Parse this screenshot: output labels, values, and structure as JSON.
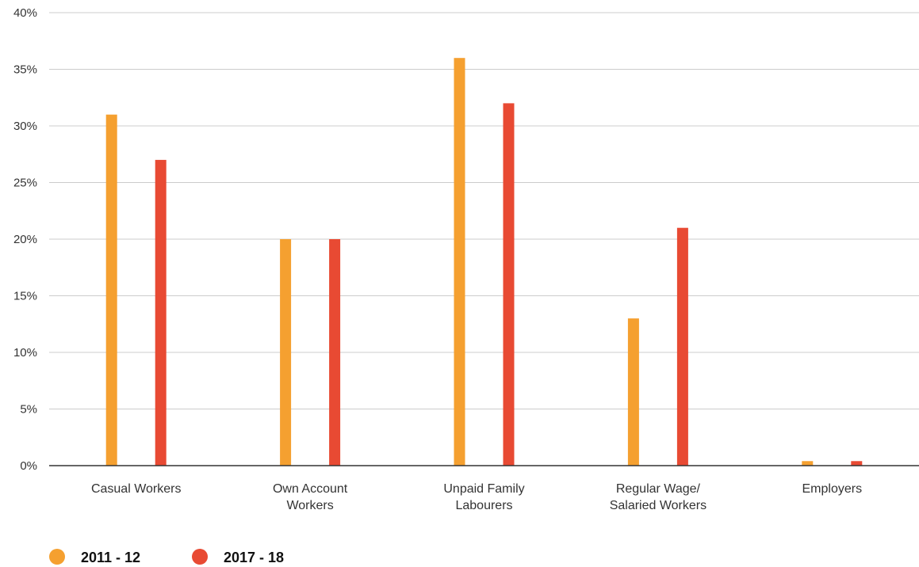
{
  "chart_data": {
    "type": "bar",
    "title": "",
    "xlabel": "",
    "ylabel": "",
    "ylim": [
      0,
      40
    ],
    "yticks": [
      "0%",
      "5%",
      "10%",
      "15%",
      "20%",
      "25%",
      "30%",
      "35%",
      "40%"
    ],
    "grid": true,
    "legend_position": "bottom-left",
    "categories": [
      [
        "Casual Workers"
      ],
      [
        "Own Account",
        "Workers"
      ],
      [
        "Unpaid Family",
        "Labourers"
      ],
      [
        "Regular Wage/",
        "Salaried Workers"
      ],
      [
        "Employers"
      ]
    ],
    "series": [
      {
        "name": "2011 - 12",
        "color": "#f5a030",
        "values": [
          31,
          20,
          36,
          13,
          0.4
        ]
      },
      {
        "name": "2017 - 18",
        "color": "#e84a33",
        "values": [
          27,
          20,
          32,
          21,
          0.4
        ]
      }
    ]
  }
}
